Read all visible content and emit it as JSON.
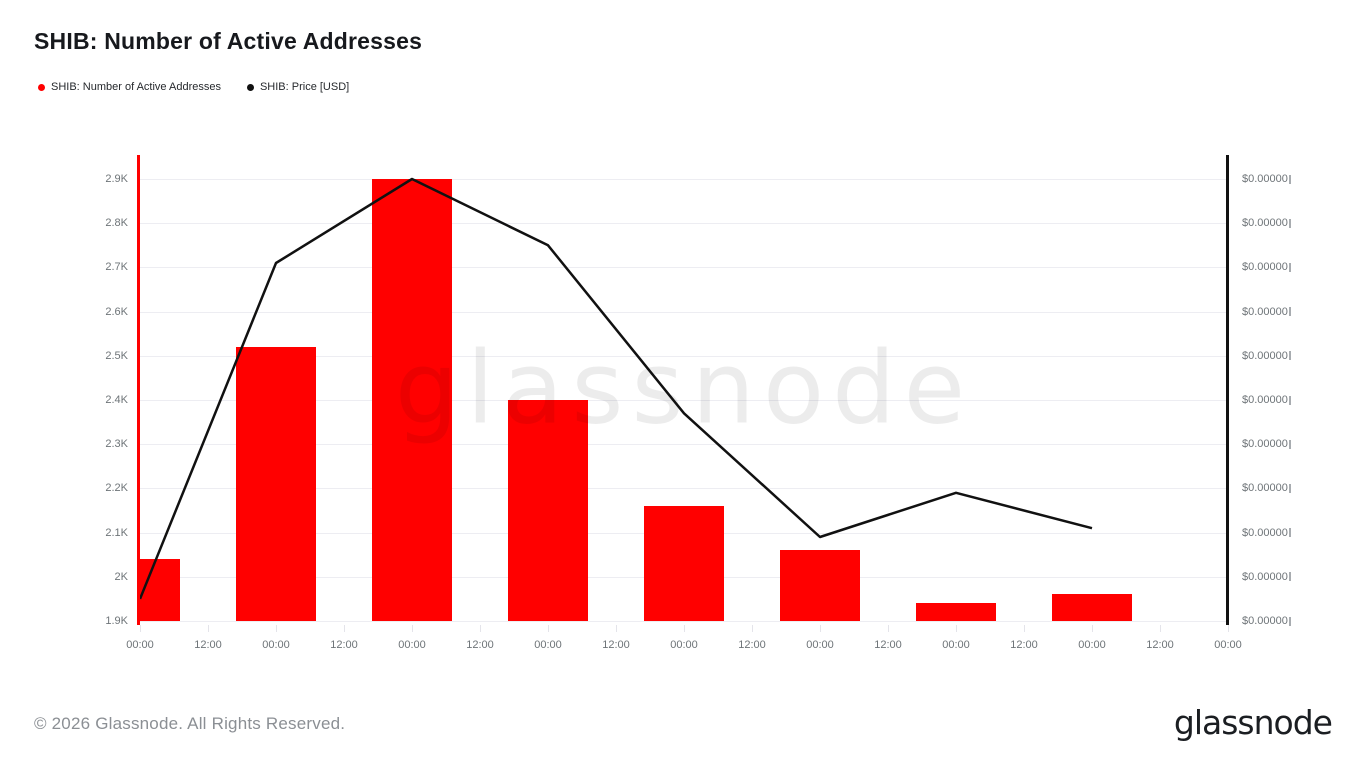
{
  "page": {
    "title": "SHIB: Number of Active Addresses",
    "watermark_text": "glassnode",
    "footer_copyright": "© 2026 Glassnode. All Rights Reserved.",
    "brand_logo_text": "glassnode"
  },
  "legend": {
    "items": [
      {
        "label": "SHIB: Number of Active Addresses",
        "color": "#ff0000"
      },
      {
        "label": "SHIB: Price [USD]",
        "color": "#111111"
      }
    ]
  },
  "chart_data": {
    "type": "bar+line",
    "title": "SHIB: Number of Active Addresses",
    "grid": "horizontal",
    "legend_position": "top-left",
    "x_tick_labels": [
      "00:00",
      "12:00",
      "00:00",
      "12:00",
      "00:00",
      "12:00",
      "00:00",
      "12:00",
      "00:00",
      "12:00",
      "00:00",
      "12:00",
      "00:00",
      "12:00",
      "00:00",
      "12:00",
      "00:00"
    ],
    "left_y_axis": {
      "tick_labels": [
        "2.9K",
        "2.8K",
        "2.7K",
        "2.6K",
        "2.5K",
        "2.4K",
        "2.3K",
        "2.2K",
        "2.1K",
        "2K",
        "1.9K"
      ],
      "tick_values_thousands": [
        2.9,
        2.8,
        2.7,
        2.6,
        2.5,
        2.4,
        2.3,
        2.2,
        2.1,
        2.0,
        1.9
      ],
      "baseline_thousands": 1.9
    },
    "right_y_axis": {
      "tick_labels": [
        "$0.00000",
        "$0.00000",
        "$0.00000",
        "$0.00000",
        "$0.00000",
        "$0.00000",
        "$0.00000",
        "$0.00000",
        "$0.00000",
        "$0.00000",
        "$0.00000"
      ],
      "labels_truncated": true
    },
    "series": [
      {
        "name": "SHIB: Number of Active Addresses",
        "type": "bar",
        "color": "#ff0000",
        "axis": "left",
        "values_thousands": [
          2.04,
          2.52,
          2.9,
          2.4,
          2.16,
          2.06,
          1.94,
          1.96
        ],
        "aligned_to_x_tick_indexes": [
          0,
          2,
          4,
          6,
          8,
          10,
          12,
          14
        ]
      },
      {
        "name": "SHIB: Price [USD]",
        "type": "line",
        "color": "#111111",
        "axis": "right",
        "plotted_left_axis_equivalent_thousands": [
          1.95,
          2.71,
          2.9,
          2.75,
          2.37,
          2.09,
          2.19,
          2.11
        ],
        "aligned_to_x_tick_indexes": [
          0,
          2,
          4,
          6,
          8,
          10,
          12,
          14
        ]
      }
    ]
  }
}
